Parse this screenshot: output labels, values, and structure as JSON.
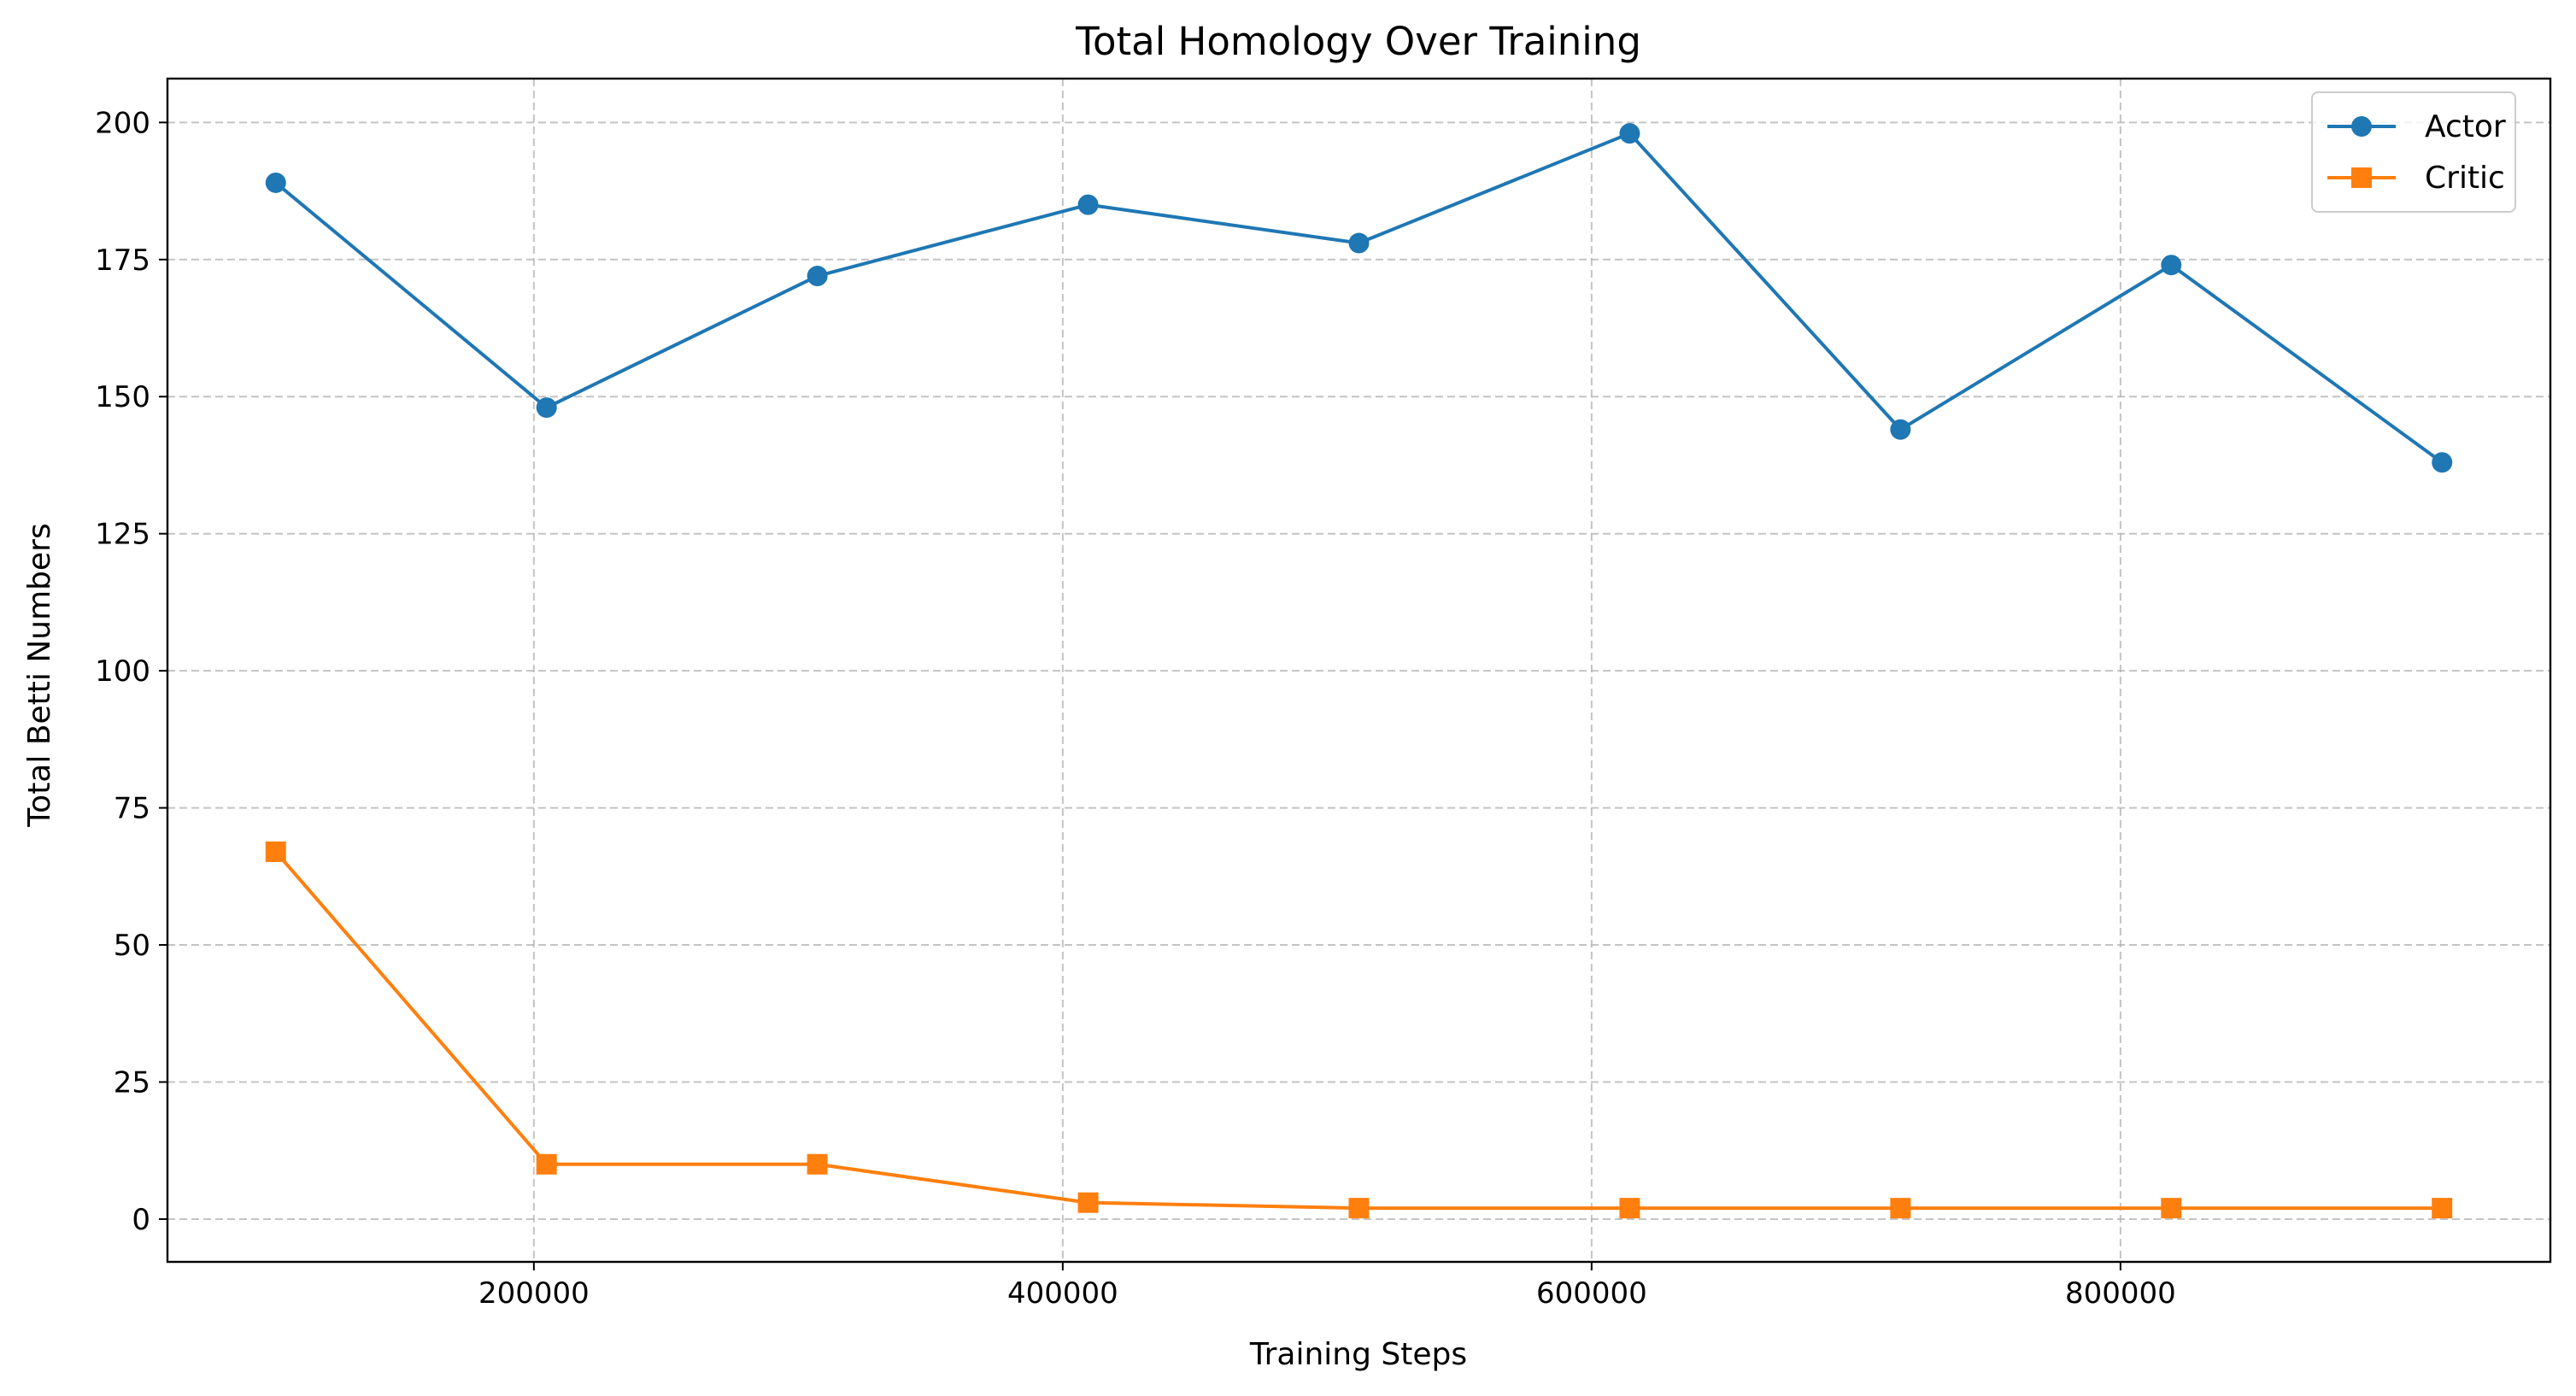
{
  "chart_data": {
    "type": "line",
    "title": "Total Homology Over Training",
    "xlabel": "Training Steps",
    "ylabel": "Total Betti Numbers",
    "x": [
      102400,
      204800,
      307200,
      409600,
      512000,
      614400,
      716800,
      819200,
      921600
    ],
    "xlim": [
      61440,
      962560
    ],
    "ylim": [
      -7.8,
      208
    ],
    "xticks": [
      200000,
      400000,
      600000,
      800000
    ],
    "xtick_labels": [
      "200000",
      "400000",
      "600000",
      "800000"
    ],
    "yticks": [
      0,
      25,
      50,
      75,
      100,
      125,
      150,
      175,
      200
    ],
    "ytick_labels": [
      "0",
      "25",
      "50",
      "75",
      "100",
      "125",
      "150",
      "175",
      "200"
    ],
    "grid": true,
    "legend_position": "top-right",
    "series": [
      {
        "name": "Actor",
        "marker": "circle",
        "color": "#1f77b4",
        "values": [
          189,
          148,
          172,
          185,
          178,
          198,
          144,
          174,
          138
        ]
      },
      {
        "name": "Critic",
        "marker": "square",
        "color": "#ff7f0e",
        "values": [
          67,
          10,
          10,
          3,
          2,
          2,
          2,
          2,
          2
        ]
      }
    ]
  }
}
